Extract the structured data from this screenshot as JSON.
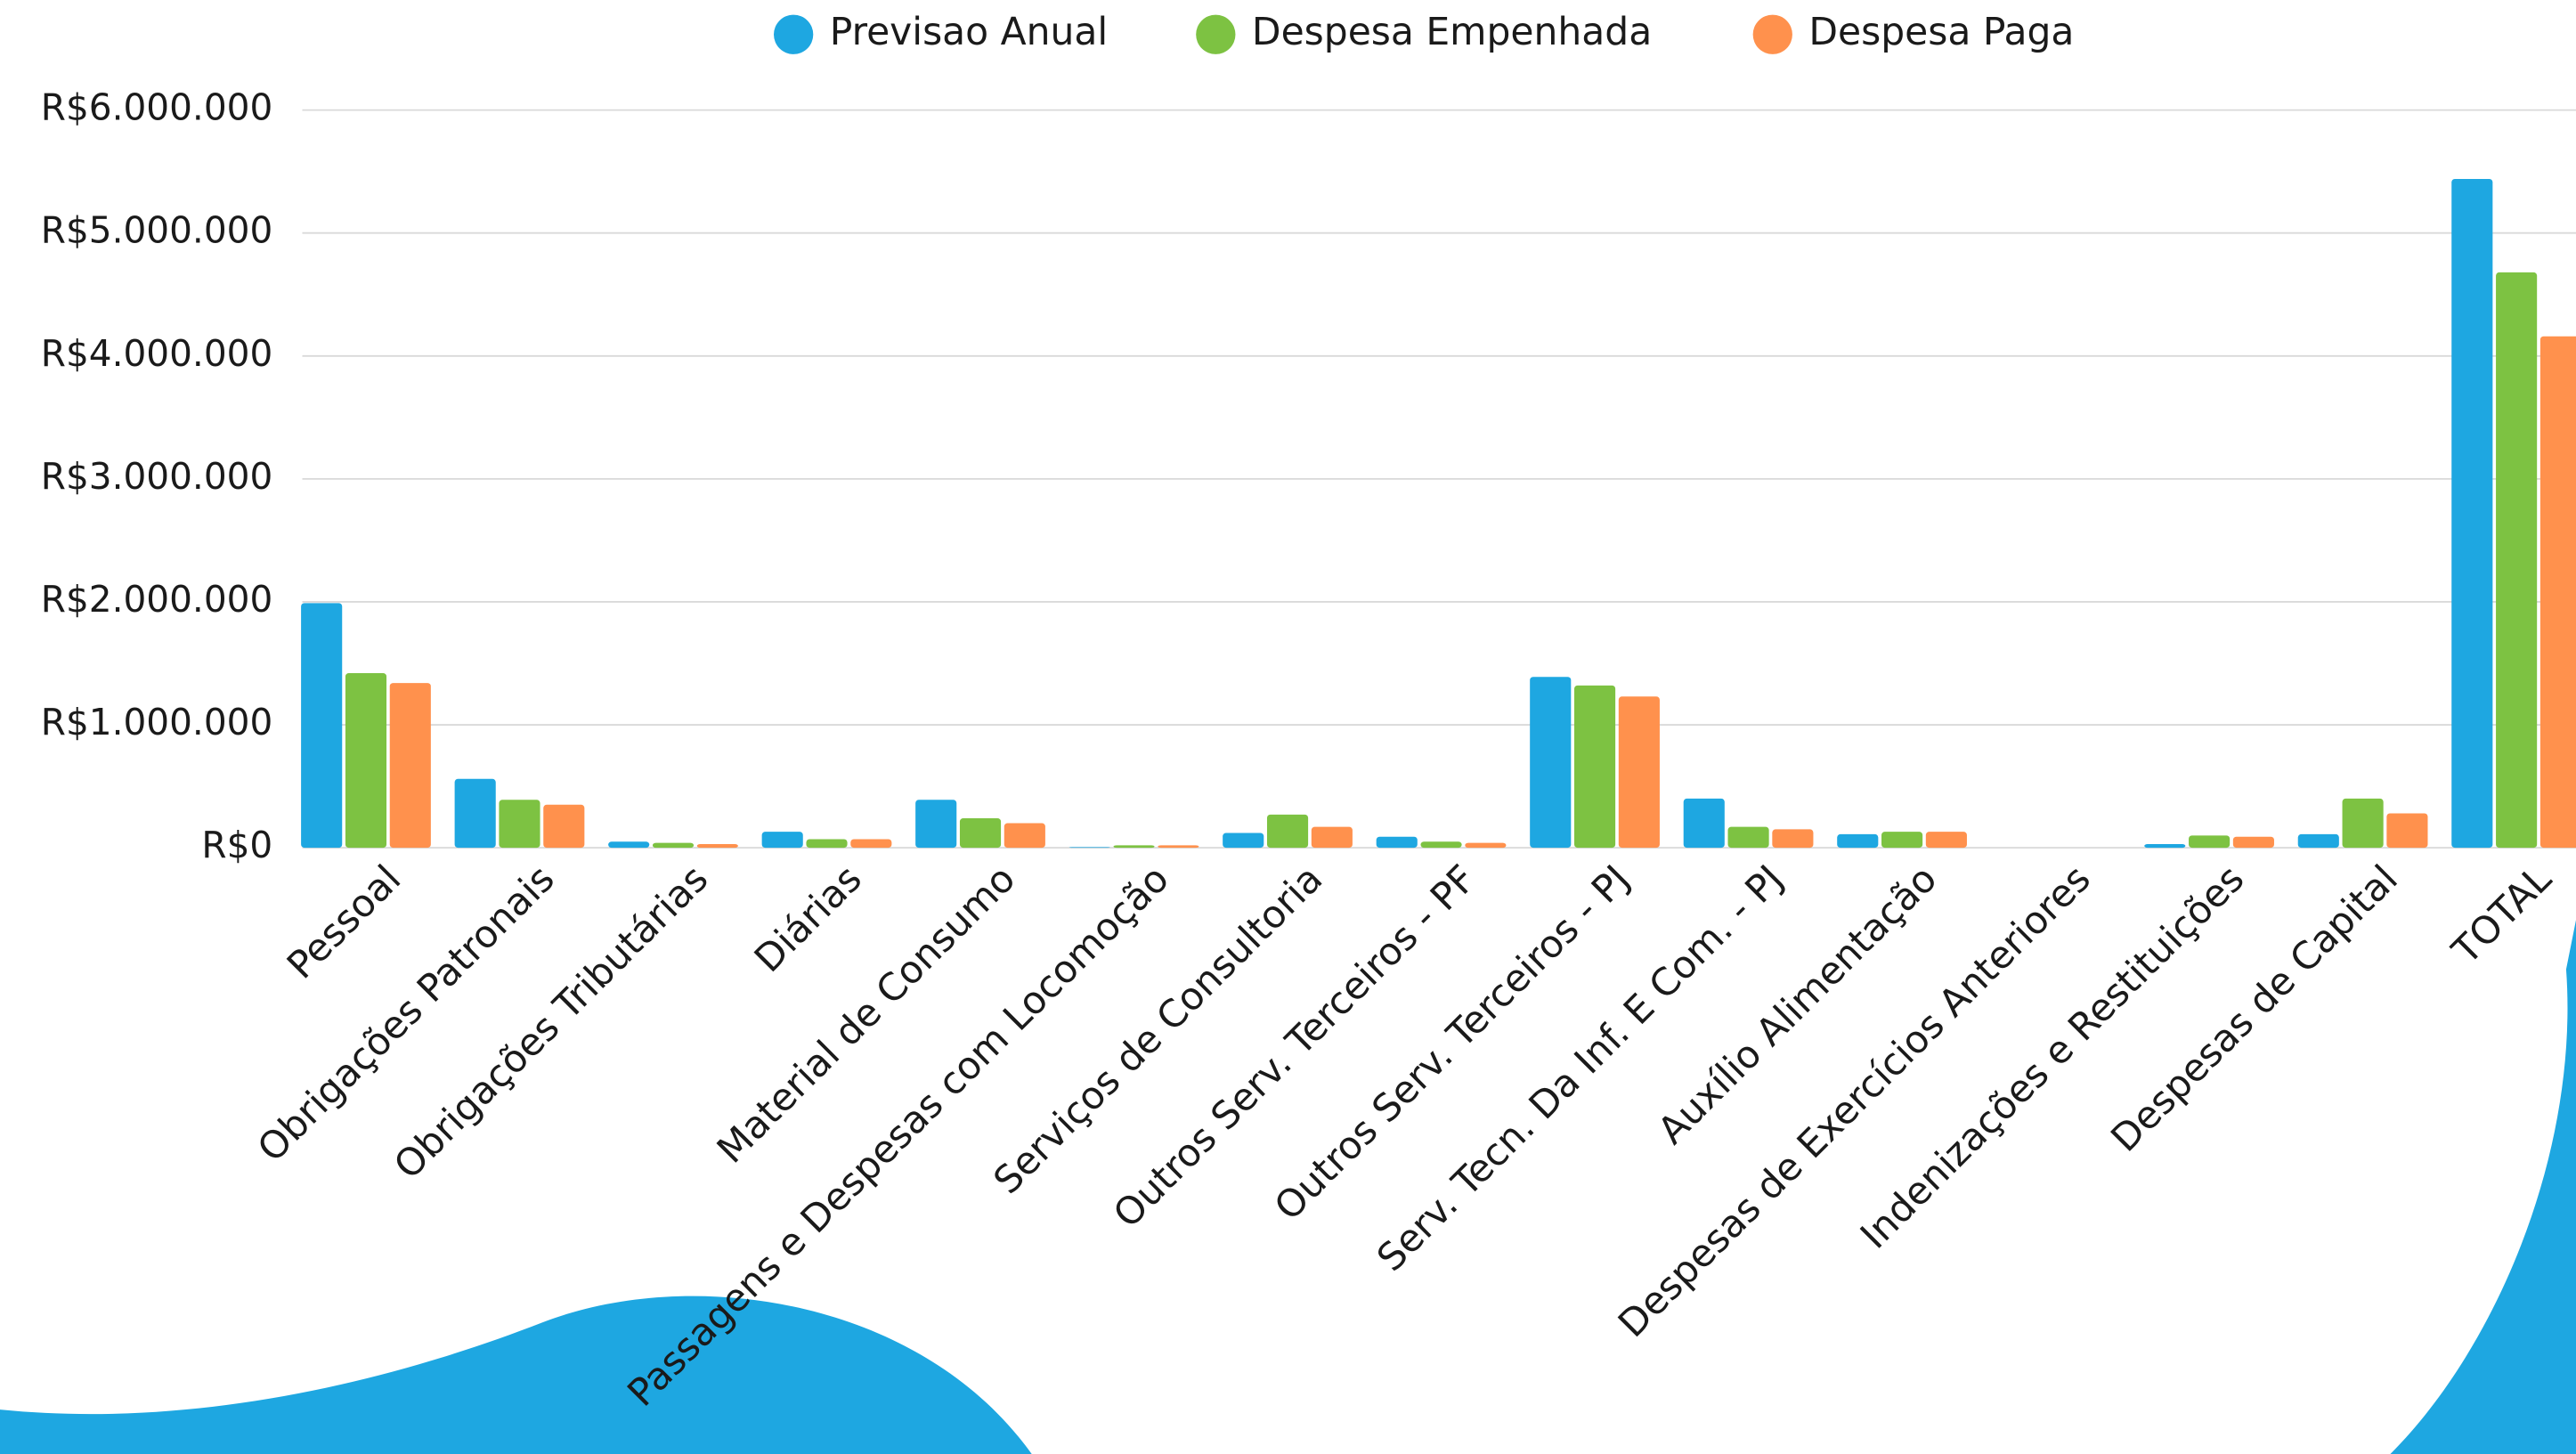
{
  "chart_data": {
    "type": "bar",
    "categories": [
      "Pessoal",
      "Obrigações Patronais",
      "Obrigações Tributárias",
      "Diárias",
      "Material de Consumo",
      "Passagens e Despesas com Locomoção",
      "Serviços de Consultoria",
      "Outros Serv. Terceiros - PF",
      "Outros Serv. Terceiros - PJ",
      "Serv. Tecn. Da Inf. E Com. - PJ",
      "Auxílio Alimentação",
      "Despesas de Exercícios Anteriores",
      "Indenizações e Restituições",
      "Despesas de Capital",
      "TOTAL"
    ],
    "series": [
      {
        "name": "Previsao Anual",
        "color": "#1ea7e1",
        "values": [
          1990000,
          560000,
          50000,
          130000,
          390000,
          5000,
          120000,
          90000,
          1390000,
          400000,
          110000,
          0,
          30000,
          110000,
          5440000
        ]
      },
      {
        "name": "Despesa Empenhada",
        "color": "#7dc242",
        "values": [
          1420000,
          390000,
          40000,
          70000,
          240000,
          20000,
          270000,
          50000,
          1320000,
          170000,
          130000,
          0,
          100000,
          400000,
          4680000
        ]
      },
      {
        "name": "Despesa Paga",
        "color": "#ff914d",
        "values": [
          1340000,
          350000,
          30000,
          70000,
          200000,
          20000,
          170000,
          40000,
          1230000,
          150000,
          130000,
          0,
          90000,
          280000,
          4160000
        ]
      }
    ],
    "ylim": [
      0,
      6000000
    ],
    "yticks": [
      {
        "value": 0,
        "label": "R$0"
      },
      {
        "value": 1000000,
        "label": "R$1.000.000"
      },
      {
        "value": 2000000,
        "label": "R$2.000.000"
      },
      {
        "value": 3000000,
        "label": "R$3.000.000"
      },
      {
        "value": 4000000,
        "label": "R$4.000.000"
      },
      {
        "value": 5000000,
        "label": "R$5.000.000"
      },
      {
        "value": 6000000,
        "label": "R$6.000.000"
      }
    ],
    "grid": true,
    "legend": "top"
  }
}
